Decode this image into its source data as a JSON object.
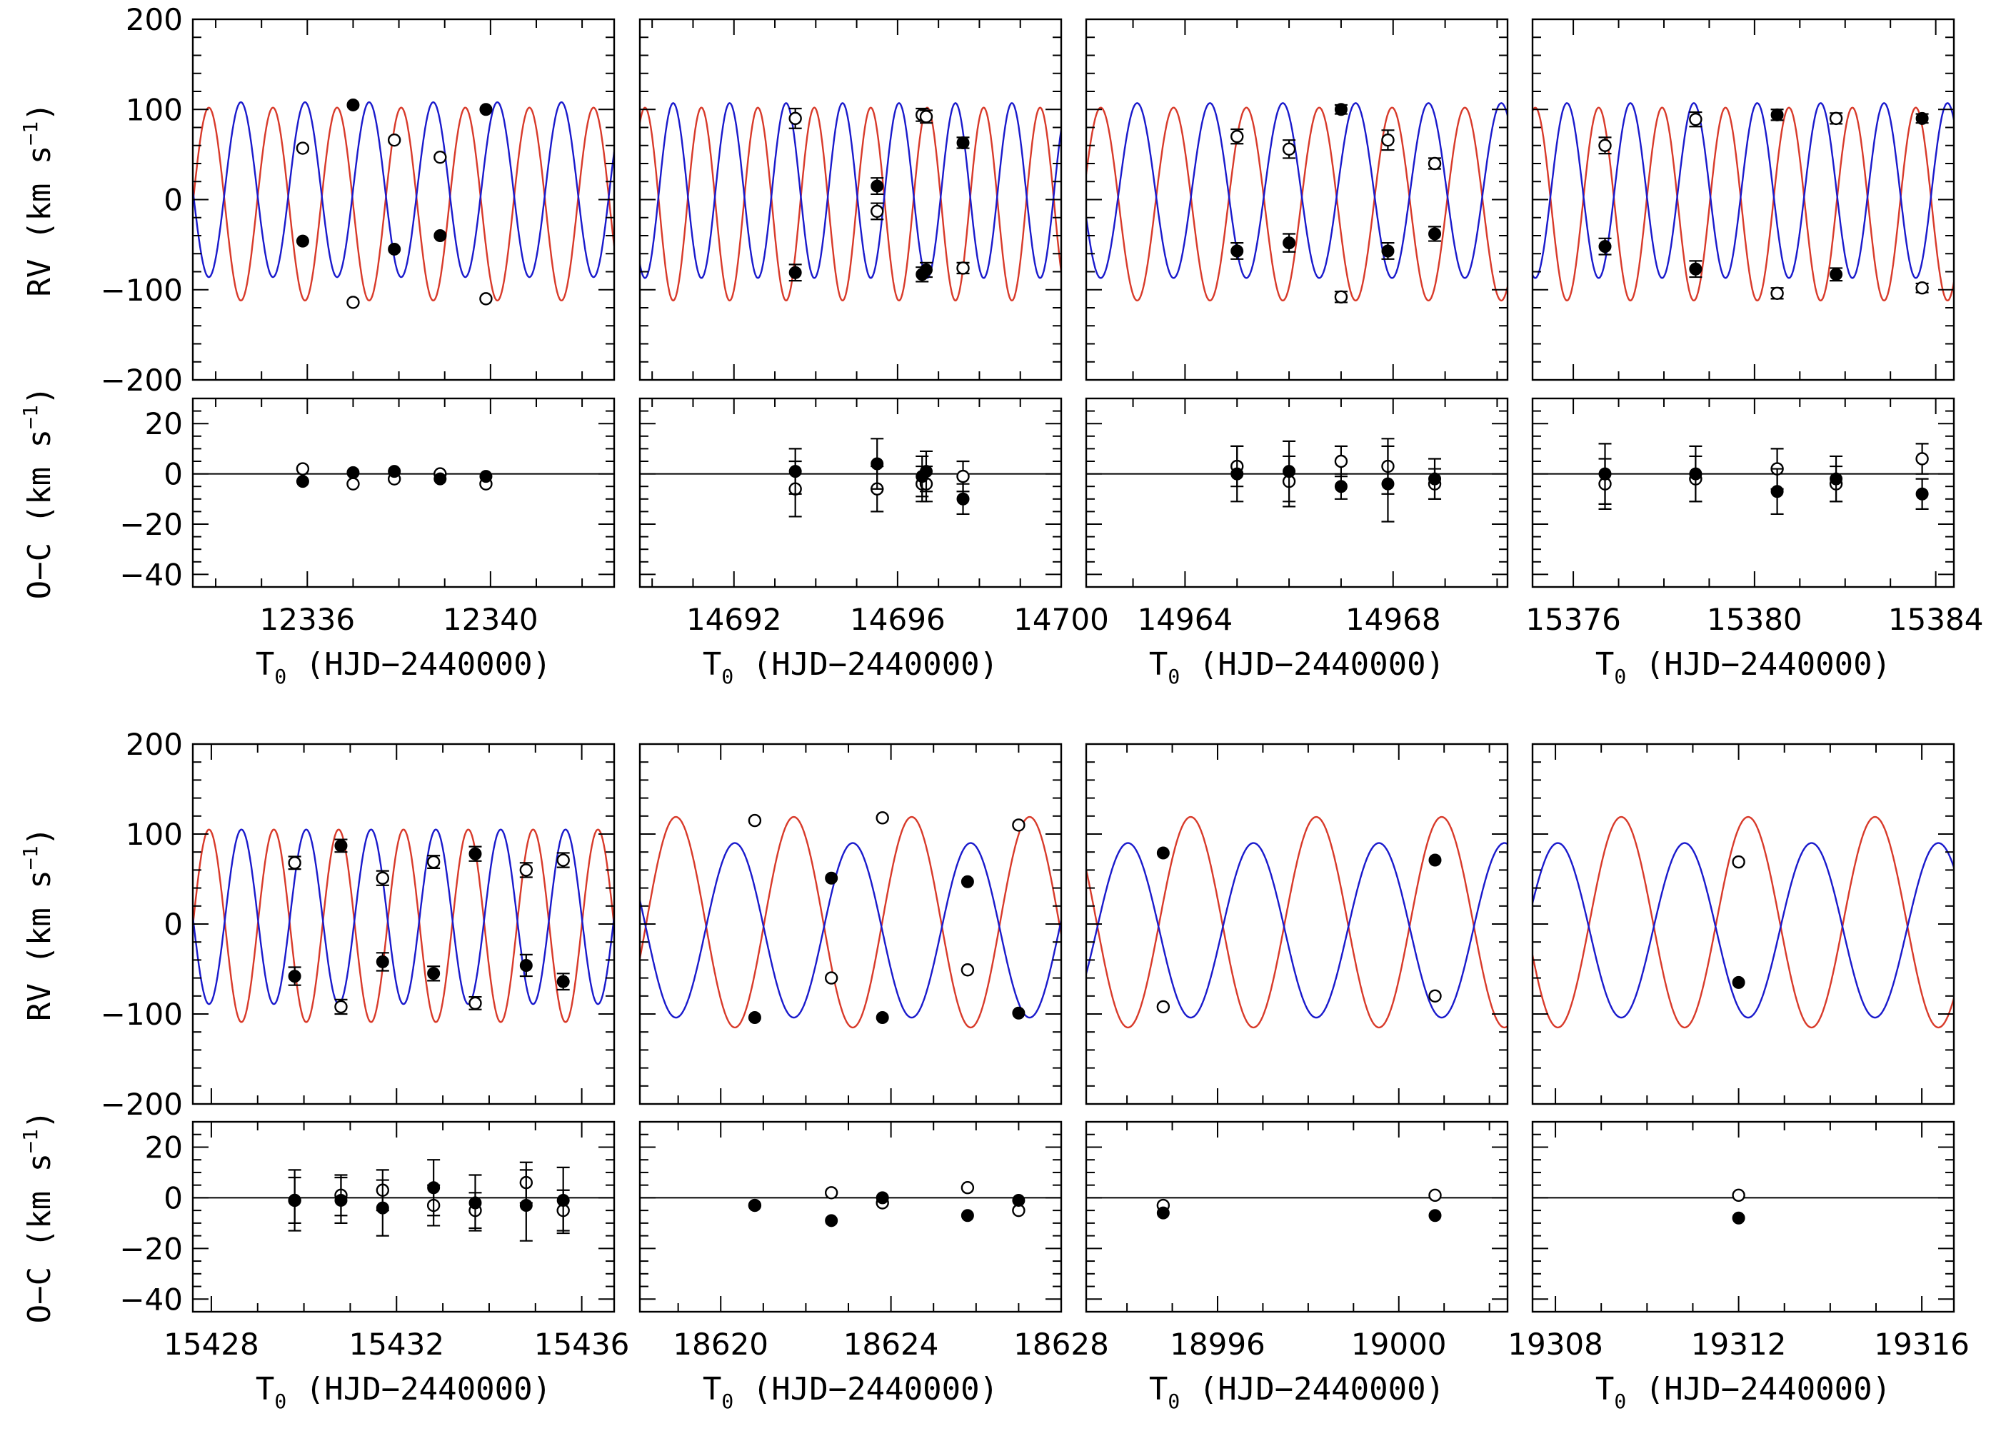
{
  "chart_data": {
    "type": "scatter",
    "description_axes": {
      "rv_ylabel": "RV (km s",
      "rv_ylabel_sup": "−1",
      "rv_ylabel_end": ")",
      "oc_ylabel": "O−C (km s",
      "oc_ylabel_sup": "−1",
      "oc_ylabel_end": ")",
      "xlabel_main": "T",
      "xlabel_sub": "0",
      "xlabel_rest": " (HJD−2440000)",
      "rv_ylim": [
        -200,
        200
      ],
      "oc_ylim": [
        -45,
        30
      ],
      "rv_ticks": [
        "200",
        "100",
        "0",
        "−100",
        "−200"
      ],
      "rv_tick_values": [
        200,
        100,
        0,
        -100,
        -200
      ],
      "oc_ticks": [
        "20",
        "0",
        "−20",
        "−40"
      ],
      "oc_tick_values": [
        20,
        0,
        -20,
        -40
      ]
    },
    "colors": {
      "primary_model": "#1a1acc",
      "secondary_model": "#d83a2a"
    },
    "panels": [
      {
        "xlim": [
          12333.5,
          12342.7
        ],
        "xticks": [
          12336,
          12340
        ],
        "xtick_labels": [
          "12336",
          "12340"
        ],
        "model": {
          "period": 1.4,
          "primary_K": 97,
          "primary_gamma": 11,
          "primary_phase0": 12334.2,
          "secondary_K": 107,
          "secondary_gamma": -5
        },
        "primary": [
          [
            12335.9,
            -46,
            0
          ],
          [
            12337.0,
            105,
            0
          ],
          [
            12337.9,
            -55,
            0
          ],
          [
            12338.9,
            -40,
            0
          ],
          [
            12339.9,
            100,
            0
          ]
        ],
        "secondary": [
          [
            12335.9,
            57,
            0
          ],
          [
            12337.0,
            -114,
            0
          ],
          [
            12337.9,
            66,
            0
          ],
          [
            12338.9,
            47,
            0
          ],
          [
            12339.9,
            -110,
            0
          ]
        ],
        "primary_oc": [
          [
            12335.9,
            -3,
            0
          ],
          [
            12337.0,
            0.5,
            0
          ],
          [
            12337.9,
            1,
            0
          ],
          [
            12338.9,
            -2,
            0
          ],
          [
            12339.9,
            -1,
            0
          ]
        ],
        "secondary_oc": [
          [
            12335.9,
            2,
            0
          ],
          [
            12337.0,
            -4,
            0
          ],
          [
            12337.9,
            -2,
            0
          ],
          [
            12338.9,
            0,
            0
          ],
          [
            12339.9,
            -4,
            0
          ]
        ]
      },
      {
        "xlim": [
          14689.7,
          14700
        ],
        "xticks": [
          14692,
          14696,
          14700
        ],
        "xtick_labels": [
          "14692",
          "14696",
          "14700"
        ],
        "model": {
          "period": 1.38,
          "primary_K": 97,
          "primary_gamma": 10,
          "primary_phase0": 14691.55,
          "secondary_K": 107,
          "secondary_gamma": -5
        },
        "primary": [
          [
            14693.5,
            -81,
            9
          ],
          [
            14695.5,
            15,
            9
          ],
          [
            14696.6,
            -83,
            8
          ],
          [
            14696.7,
            -78,
            8
          ],
          [
            14697.6,
            63,
            6
          ]
        ],
        "secondary": [
          [
            14693.5,
            90,
            11
          ],
          [
            14695.5,
            -13,
            9
          ],
          [
            14696.6,
            94,
            7
          ],
          [
            14696.7,
            92,
            7
          ],
          [
            14697.6,
            -76,
            6
          ]
        ],
        "primary_oc": [
          [
            14693.5,
            1,
            9
          ],
          [
            14695.5,
            4,
            10
          ],
          [
            14696.6,
            -1,
            8
          ],
          [
            14696.7,
            1,
            8
          ],
          [
            14697.6,
            -10,
            6
          ]
        ],
        "secondary_oc": [
          [
            14693.5,
            -6,
            11
          ],
          [
            14695.5,
            -6,
            9
          ],
          [
            14696.6,
            -4,
            7
          ],
          [
            14696.7,
            -4,
            7
          ],
          [
            14697.6,
            -1,
            6
          ]
        ]
      },
      {
        "xlim": [
          14962.1,
          14970.2
        ],
        "xticks": [
          14964,
          14968
        ],
        "xtick_labels": [
          "14964",
          "14968"
        ],
        "model": {
          "period": 1.4,
          "primary_K": 97,
          "primary_gamma": 10,
          "primary_phase0": 14962.73,
          "secondary_K": 107,
          "secondary_gamma": -5
        },
        "primary": [
          [
            14965.0,
            -57,
            9
          ],
          [
            14966.0,
            -48,
            10
          ],
          [
            14967.0,
            100,
            5
          ],
          [
            14967.9,
            -57,
            9
          ],
          [
            14968.8,
            -38,
            8
          ]
        ],
        "secondary": [
          [
            14965.0,
            70,
            8
          ],
          [
            14966.0,
            56,
            10
          ],
          [
            14967.0,
            -108,
            6
          ],
          [
            14967.9,
            66,
            11
          ],
          [
            14968.8,
            40,
            6
          ]
        ],
        "primary_oc": [
          [
            14965.0,
            0,
            11
          ],
          [
            14966.0,
            1,
            12
          ],
          [
            14967.0,
            -5,
            5
          ],
          [
            14967.9,
            -4,
            15
          ],
          [
            14968.8,
            -2,
            8
          ]
        ],
        "secondary_oc": [
          [
            14965.0,
            3,
            8
          ],
          [
            14966.0,
            -3,
            10
          ],
          [
            14967.0,
            5,
            6
          ],
          [
            14967.9,
            3,
            11
          ],
          [
            14968.8,
            -4,
            6
          ]
        ]
      },
      {
        "xlim": [
          15375.1,
          15384.4
        ],
        "xticks": [
          15376,
          15380,
          15384
        ],
        "xtick_labels": [
          "15376",
          "15380",
          "15384"
        ],
        "model": {
          "period": 1.4,
          "primary_K": 97,
          "primary_gamma": 10,
          "primary_phase0": 15375.51,
          "secondary_K": 107,
          "secondary_gamma": -5
        },
        "primary": [
          [
            15376.7,
            -52,
            9
          ],
          [
            15378.7,
            -77,
            9
          ],
          [
            15380.5,
            94,
            6
          ],
          [
            15381.8,
            -83,
            7
          ],
          [
            15383.7,
            90,
            5
          ]
        ],
        "secondary": [
          [
            15376.7,
            60,
            9
          ],
          [
            15378.7,
            89,
            8
          ],
          [
            15380.5,
            -104,
            6
          ],
          [
            15381.8,
            90,
            6
          ],
          [
            15383.7,
            -98,
            5
          ]
        ],
        "primary_oc": [
          [
            15376.7,
            0,
            12
          ],
          [
            15378.7,
            0,
            11
          ],
          [
            15380.5,
            -7,
            9
          ],
          [
            15381.8,
            -2,
            9
          ],
          [
            15383.7,
            -8,
            6
          ]
        ],
        "secondary_oc": [
          [
            15376.7,
            -4,
            10
          ],
          [
            15378.7,
            -2,
            9
          ],
          [
            15380.5,
            2,
            8
          ],
          [
            15381.8,
            -4,
            7
          ],
          [
            15383.7,
            6,
            6
          ]
        ]
      },
      {
        "xlim": [
          15427.6,
          15436.7
        ],
        "xticks": [
          15428,
          15432,
          15436
        ],
        "xtick_labels": [
          "15428",
          "15432",
          "15436"
        ],
        "model": {
          "period": 1.4,
          "primary_K": 97,
          "primary_gamma": 8,
          "primary_phase0": 15428.3,
          "secondary_K": 107,
          "secondary_gamma": -2
        },
        "primary": [
          [
            15429.8,
            -58,
            10
          ],
          [
            15430.8,
            87,
            7
          ],
          [
            15431.7,
            -42,
            10
          ],
          [
            15432.8,
            -55,
            8
          ],
          [
            15433.7,
            78,
            8
          ],
          [
            15434.8,
            -46,
            12
          ],
          [
            15435.6,
            -64,
            9
          ]
        ],
        "secondary": [
          [
            15429.8,
            68,
            7
          ],
          [
            15430.8,
            -92,
            8
          ],
          [
            15431.7,
            51,
            8
          ],
          [
            15432.8,
            69,
            7
          ],
          [
            15433.7,
            -88,
            7
          ],
          [
            15434.8,
            60,
            8
          ],
          [
            15435.6,
            71,
            8
          ]
        ],
        "primary_oc": [
          [
            15429.8,
            -1,
            12
          ],
          [
            15430.8,
            -1,
            9
          ],
          [
            15431.7,
            -4,
            11
          ],
          [
            15432.8,
            4,
            11
          ],
          [
            15433.7,
            -2,
            11
          ],
          [
            15434.8,
            -3,
            14
          ],
          [
            15435.6,
            -1,
            13
          ]
        ],
        "secondary_oc": [
          [
            15429.8,
            -1,
            9
          ],
          [
            15430.8,
            1,
            8
          ],
          [
            15431.7,
            3,
            8
          ],
          [
            15432.8,
            -3,
            8
          ],
          [
            15433.7,
            -5,
            7
          ],
          [
            15434.8,
            6,
            8
          ],
          [
            15435.6,
            -5,
            8
          ]
        ]
      },
      {
        "xlim": [
          18618.1,
          18628
        ],
        "xticks": [
          18620,
          18624,
          18628
        ],
        "xtick_labels": [
          "18620",
          "18624",
          "18628"
        ],
        "model": {
          "period": 2.77,
          "primary_K": 97,
          "primary_gamma": -7,
          "primary_phase0": 18619.64,
          "secondary_K": 117,
          "secondary_gamma": 2
        },
        "primary": [
          [
            18620.8,
            -104,
            0
          ],
          [
            18622.6,
            51,
            0
          ],
          [
            18623.8,
            -104,
            0
          ],
          [
            18625.8,
            47,
            0
          ],
          [
            18627.0,
            -99,
            0
          ]
        ],
        "secondary": [
          [
            18620.8,
            115,
            0
          ],
          [
            18622.6,
            -60,
            0
          ],
          [
            18623.8,
            118,
            0
          ],
          [
            18625.8,
            -51,
            0
          ],
          [
            18627.0,
            110,
            0
          ]
        ],
        "primary_oc": [
          [
            18620.8,
            -3,
            0
          ],
          [
            18622.6,
            -9,
            0
          ],
          [
            18623.8,
            0,
            0
          ],
          [
            18625.8,
            -7,
            0
          ],
          [
            18627.0,
            -1,
            0
          ]
        ],
        "secondary_oc": [
          [
            18620.8,
            -3,
            0
          ],
          [
            18622.6,
            2,
            0
          ],
          [
            18623.8,
            -2,
            0
          ],
          [
            18625.8,
            4,
            0
          ],
          [
            18627.0,
            -5,
            0
          ]
        ]
      },
      {
        "xlim": [
          18993.1,
          19002.4
        ],
        "xticks": [
          18996,
          19000
        ],
        "xtick_labels": [
          "18996",
          "19000"
        ],
        "model": {
          "period": 2.77,
          "primary_K": 97,
          "primary_gamma": -7,
          "primary_phase0": 18993.33,
          "secondary_K": 117,
          "secondary_gamma": 2
        },
        "primary": [
          [
            18994.8,
            79,
            0
          ],
          [
            19000.8,
            71,
            0
          ]
        ],
        "secondary": [
          [
            18994.8,
            -92,
            0
          ],
          [
            19000.8,
            -80,
            0
          ]
        ],
        "primary_oc": [
          [
            18994.8,
            -6,
            0
          ],
          [
            19000.8,
            -7,
            0
          ]
        ],
        "secondary_oc": [
          [
            18994.8,
            -3,
            0
          ],
          [
            19000.8,
            1,
            0
          ]
        ]
      },
      {
        "xlim": [
          19307.5,
          19316.7
        ],
        "xticks": [
          19308,
          19312,
          19316
        ],
        "xtick_labels": [
          "19308",
          "19312",
          "19316"
        ],
        "model": {
          "period": 2.77,
          "primary_K": 97,
          "primary_gamma": -7,
          "primary_phase0": 19307.36,
          "secondary_K": 117,
          "secondary_gamma": 2
        },
        "primary": [
          [
            19312.0,
            -65,
            0
          ]
        ],
        "secondary": [
          [
            19312.0,
            69,
            0
          ]
        ],
        "primary_oc": [
          [
            19312.0,
            -8,
            0
          ]
        ],
        "secondary_oc": [
          [
            19312.0,
            1,
            0
          ]
        ]
      }
    ]
  }
}
